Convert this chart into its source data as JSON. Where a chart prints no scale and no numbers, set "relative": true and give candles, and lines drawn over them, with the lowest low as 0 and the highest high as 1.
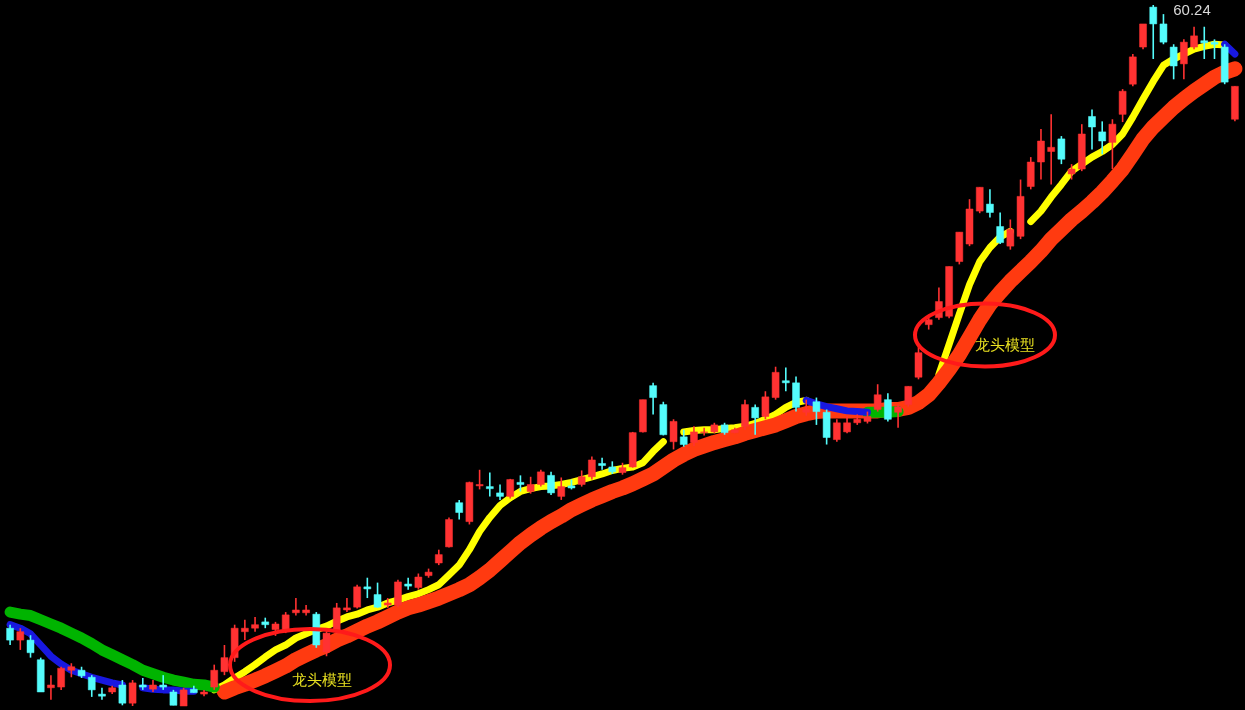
{
  "chart_data": {
    "type": "candlestick",
    "relative": true,
    "categories": [
      null,
      null,
      null,
      null,
      null,
      null,
      null,
      null,
      null,
      null,
      null,
      null,
      null,
      null,
      null,
      null,
      null,
      null,
      null,
      null,
      null,
      null,
      null,
      null,
      null,
      null,
      null,
      null,
      null,
      null,
      null,
      null,
      null,
      null,
      null,
      null,
      null,
      null,
      null,
      null,
      null,
      null,
      null,
      null,
      null,
      null,
      null,
      null,
      null,
      null,
      null,
      null,
      null,
      null,
      null,
      null,
      null,
      null,
      null,
      null,
      null,
      null,
      null,
      null,
      null,
      null,
      null,
      null,
      null,
      null,
      null,
      null,
      null,
      null,
      null,
      null,
      null,
      null,
      null,
      null,
      null,
      null,
      null,
      null,
      null,
      null,
      null,
      null,
      null,
      null,
      null,
      null,
      null,
      null,
      null,
      null,
      null,
      null,
      null,
      null,
      null,
      null,
      null,
      null,
      null,
      null,
      null,
      null,
      null,
      null,
      null,
      null,
      null,
      null,
      null,
      null,
      null,
      null,
      null,
      null,
      null
    ],
    "ohlc": [
      [
        0.111,
        0.116,
        0.087,
        0.094
      ],
      [
        0.094,
        0.111,
        0.08,
        0.106
      ],
      [
        0.094,
        0.101,
        0.069,
        0.076
      ],
      [
        0.066,
        0.069,
        0.02,
        0.02
      ],
      [
        0.026,
        0.044,
        0.009,
        0.03
      ],
      [
        0.027,
        0.056,
        0.023,
        0.054
      ],
      [
        0.051,
        0.061,
        0.041,
        0.056
      ],
      [
        0.051,
        0.056,
        0.04,
        0.043
      ],
      [
        0.041,
        0.044,
        0.013,
        0.023
      ],
      [
        0.017,
        0.026,
        0.009,
        0.014
      ],
      [
        0.02,
        0.029,
        0.017,
        0.026
      ],
      [
        0.03,
        0.037,
        0.001,
        0.004
      ],
      [
        0.004,
        0.037,
        0.0,
        0.033
      ],
      [
        0.03,
        0.04,
        0.023,
        0.027
      ],
      [
        0.024,
        0.037,
        0.02,
        0.03
      ],
      [
        0.03,
        0.044,
        0.023,
        0.027
      ],
      [
        0.02,
        0.023,
        0.001,
        0.001
      ],
      [
        0.0,
        0.026,
        0.0,
        0.023
      ],
      [
        0.024,
        0.029,
        0.019,
        0.019
      ],
      [
        0.017,
        0.023,
        0.014,
        0.02
      ],
      [
        0.027,
        0.059,
        0.023,
        0.051
      ],
      [
        0.049,
        0.087,
        0.044,
        0.069
      ],
      [
        0.069,
        0.116,
        0.063,
        0.111
      ],
      [
        0.106,
        0.123,
        0.094,
        0.111
      ],
      [
        0.111,
        0.127,
        0.106,
        0.116
      ],
      [
        0.12,
        0.126,
        0.111,
        0.116
      ],
      [
        0.109,
        0.12,
        0.1,
        0.117
      ],
      [
        0.109,
        0.134,
        0.104,
        0.13
      ],
      [
        0.133,
        0.154,
        0.129,
        0.137
      ],
      [
        0.133,
        0.144,
        0.129,
        0.137
      ],
      [
        0.131,
        0.134,
        0.083,
        0.087
      ],
      [
        0.077,
        0.111,
        0.071,
        0.104
      ],
      [
        0.106,
        0.147,
        0.103,
        0.14
      ],
      [
        0.137,
        0.154,
        0.134,
        0.14
      ],
      [
        0.141,
        0.173,
        0.139,
        0.17
      ],
      [
        0.17,
        0.183,
        0.154,
        0.167
      ],
      [
        0.159,
        0.176,
        0.14,
        0.141
      ],
      [
        0.144,
        0.154,
        0.14,
        0.147
      ],
      [
        0.144,
        0.18,
        0.141,
        0.177
      ],
      [
        0.174,
        0.183,
        0.166,
        0.171
      ],
      [
        0.169,
        0.189,
        0.166,
        0.184
      ],
      [
        0.186,
        0.196,
        0.183,
        0.191
      ],
      [
        0.204,
        0.223,
        0.201,
        0.216
      ],
      [
        0.227,
        0.269,
        0.226,
        0.266
      ],
      [
        0.29,
        0.294,
        0.266,
        0.276
      ],
      [
        0.263,
        0.32,
        0.259,
        0.319
      ],
      [
        0.314,
        0.337,
        0.309,
        0.316
      ],
      [
        0.313,
        0.333,
        0.299,
        0.31
      ],
      [
        0.304,
        0.316,
        0.294,
        0.299
      ],
      [
        0.299,
        0.324,
        0.296,
        0.323
      ],
      [
        0.319,
        0.329,
        0.306,
        0.316
      ],
      [
        0.306,
        0.327,
        0.303,
        0.316
      ],
      [
        0.316,
        0.337,
        0.313,
        0.334
      ],
      [
        0.329,
        0.334,
        0.301,
        0.304
      ],
      [
        0.299,
        0.326,
        0.294,
        0.313
      ],
      [
        0.314,
        0.323,
        0.309,
        0.311
      ],
      [
        0.316,
        0.336,
        0.313,
        0.327
      ],
      [
        0.327,
        0.356,
        0.323,
        0.351
      ],
      [
        0.346,
        0.354,
        0.337,
        0.343
      ],
      [
        0.341,
        0.349,
        0.331,
        0.334
      ],
      [
        0.333,
        0.347,
        0.33,
        0.34
      ],
      [
        0.341,
        0.391,
        0.34,
        0.39
      ],
      [
        0.391,
        0.437,
        0.39,
        0.437
      ],
      [
        0.457,
        0.461,
        0.416,
        0.44
      ],
      [
        0.43,
        0.434,
        0.386,
        0.387
      ],
      [
        0.377,
        0.409,
        0.366,
        0.406
      ],
      [
        0.384,
        0.394,
        0.37,
        0.373
      ],
      [
        0.376,
        0.399,
        0.371,
        0.391
      ],
      [
        0.39,
        0.397,
        0.386,
        0.391
      ],
      [
        0.391,
        0.404,
        0.389,
        0.401
      ],
      [
        0.401,
        0.404,
        0.387,
        0.39
      ],
      [
        0.39,
        0.397,
        0.389,
        0.394
      ],
      [
        0.399,
        0.437,
        0.394,
        0.43
      ],
      [
        0.426,
        0.43,
        0.387,
        0.411
      ],
      [
        0.413,
        0.449,
        0.409,
        0.441
      ],
      [
        0.44,
        0.484,
        0.437,
        0.476
      ],
      [
        0.464,
        0.483,
        0.449,
        0.461
      ],
      [
        0.461,
        0.47,
        0.42,
        0.426
      ],
      [
        0.419,
        0.437,
        0.414,
        0.423
      ],
      [
        0.434,
        0.44,
        0.401,
        0.42
      ],
      [
        0.419,
        0.423,
        0.373,
        0.383
      ],
      [
        0.38,
        0.409,
        0.377,
        0.404
      ],
      [
        0.391,
        0.414,
        0.389,
        0.404
      ],
      [
        0.404,
        0.416,
        0.401,
        0.409
      ],
      [
        0.406,
        0.42,
        0.403,
        0.413
      ],
      [
        0.423,
        0.459,
        0.42,
        0.444
      ],
      [
        0.437,
        0.446,
        0.406,
        0.409
      ],
      [
        0.419,
        0.43,
        0.397,
        0.427
      ],
      [
        0.43,
        0.456,
        0.427,
        0.456
      ],
      [
        0.469,
        0.516,
        0.466,
        0.504
      ],
      [
        0.544,
        0.554,
        0.537,
        0.551
      ],
      [
        0.554,
        0.597,
        0.551,
        0.577
      ],
      [
        0.556,
        0.627,
        0.553,
        0.627
      ],
      [
        0.634,
        0.676,
        0.63,
        0.676
      ],
      [
        0.659,
        0.723,
        0.656,
        0.709
      ],
      [
        0.706,
        0.74,
        0.703,
        0.74
      ],
      [
        0.716,
        0.737,
        0.697,
        0.704
      ],
      [
        0.684,
        0.704,
        0.659,
        0.661
      ],
      [
        0.656,
        0.694,
        0.651,
        0.68
      ],
      [
        0.67,
        0.751,
        0.666,
        0.727
      ],
      [
        0.741,
        0.783,
        0.737,
        0.776
      ],
      [
        0.776,
        0.823,
        0.751,
        0.806
      ],
      [
        0.791,
        0.844,
        0.744,
        0.797
      ],
      [
        0.809,
        0.813,
        0.773,
        0.78
      ],
      [
        0.759,
        0.773,
        0.751,
        0.766
      ],
      [
        0.766,
        0.83,
        0.763,
        0.816
      ],
      [
        0.841,
        0.851,
        0.794,
        0.826
      ],
      [
        0.819,
        0.834,
        0.787,
        0.806
      ],
      [
        0.804,
        0.837,
        0.766,
        0.83
      ],
      [
        0.844,
        0.88,
        0.833,
        0.877
      ],
      [
        0.887,
        0.93,
        0.884,
        0.926
      ],
      [
        0.94,
        0.973,
        0.937,
        0.973
      ],
      [
        0.997,
        1.0,
        0.923,
        0.973
      ],
      [
        0.973,
        0.987,
        0.944,
        0.947
      ],
      [
        0.94,
        0.944,
        0.894,
        0.913
      ],
      [
        0.916,
        0.951,
        0.894,
        0.947
      ],
      [
        0.94,
        0.969,
        0.937,
        0.956
      ],
      [
        0.949,
        0.969,
        0.923,
        0.946
      ],
      [
        0.947,
        0.951,
        0.923,
        0.944
      ],
      [
        0.94,
        0.944,
        0.887,
        0.89
      ],
      [
        0.837,
        0.884,
        0.834,
        0.884
      ]
    ],
    "colors": [
      "#54fcfc",
      "#ff3232",
      "#54fcfc",
      "#54fcfc",
      "#ff3232",
      "#ff3232",
      "#ff3232",
      "#54fcfc",
      "#54fcfc",
      "#54fcfc",
      "#ff3232",
      "#54fcfc",
      "#ff3232",
      "#54fcfc",
      "#ff3232",
      "#54fcfc",
      "#54fcfc",
      "#ff3232",
      "#54fcfc",
      "#ff3232",
      "#ff3232",
      "#ff3232",
      "#ff3232",
      "#ff3232",
      "#ff3232",
      "#54fcfc",
      "#ff3232",
      "#ff3232",
      "#ff3232",
      "#ff3232",
      "#54fcfc",
      "#ff3232",
      "#ff3232",
      "#ff3232",
      "#ff3232",
      "#54fcfc",
      "#54fcfc",
      "#ff3232",
      "#ff3232",
      "#54fcfc",
      "#ff3232",
      "#ff3232",
      "#ff3232",
      "#ff3232",
      "#54fcfc",
      "#ff3232",
      "#ff3232",
      "#54fcfc",
      "#54fcfc",
      "#ff3232",
      "#54fcfc",
      "#ff3232",
      "#ff3232",
      "#54fcfc",
      "#ff3232",
      "#54fcfc",
      "#ff3232",
      "#ff3232",
      "#54fcfc",
      "#54fcfc",
      "#ff3232",
      "#ff3232",
      "#ff3232",
      "#54fcfc",
      "#54fcfc",
      "#ff3232",
      "#54fcfc",
      "#ff3232",
      "#ff3232",
      "#ff3232",
      "#54fcfc",
      "#ff3232",
      "#ff3232",
      "#54fcfc",
      "#ff3232",
      "#ff3232",
      "#54fcfc",
      "#54fcfc",
      "#ff3232",
      "#54fcfc",
      "#54fcfc",
      "#ff3232",
      "#ff3232",
      "#ff3232",
      "#ff3232",
      "#ff3232",
      "#54fcfc",
      "#ff3232",
      "#ff3232",
      "#ff3232",
      "#ff3232",
      "#ff3232",
      "#ff3232",
      "#ff3232",
      "#ff3232",
      "#ff3232",
      "#54fcfc",
      "#54fcfc",
      "#ff3232",
      "#ff3232",
      "#ff3232",
      "#ff3232",
      "#ff3232",
      "#54fcfc",
      "#ff3232",
      "#ff3232",
      "#54fcfc",
      "#54fcfc",
      "#ff3232",
      "#ff3232",
      "#ff3232",
      "#ff3232",
      "#54fcfc",
      "#54fcfc",
      "#54fcfc",
      "#ff3232",
      "#ff3232",
      "#54fcfc",
      "#54fcfc",
      "#54fcfc",
      "#ff3232"
    ],
    "series": [
      {
        "type": "line",
        "color": "#ffff00",
        "values": [
          null,
          null,
          null,
          null,
          null,
          null,
          null,
          null,
          null,
          null,
          null,
          null,
          null,
          null,
          null,
          null,
          null,
          null,
          null,
          null,
          0.023,
          0.03,
          0.04,
          0.049,
          0.059,
          0.07,
          0.08,
          0.087,
          0.097,
          0.103,
          0.109,
          0.114,
          0.121,
          0.127,
          0.131,
          0.137,
          0.141,
          0.147,
          0.151,
          0.156,
          0.16,
          0.166,
          0.173,
          0.187,
          0.201,
          0.223,
          0.249,
          0.269,
          0.286,
          0.297,
          0.306,
          0.31,
          0.313,
          0.314,
          0.316,
          0.319,
          0.323,
          0.327,
          0.331,
          0.336,
          0.339,
          0.341,
          0.347,
          0.363,
          0.377,
          null,
          0.391,
          0.393,
          0.394,
          0.394,
          0.396,
          0.397,
          0.399,
          0.403,
          0.409,
          0.416,
          0.426,
          0.433,
          0.436,
          null,
          null,
          null,
          null,
          null,
          null,
          null,
          null,
          null,
          null,
          null,
          null,
          0.473,
          0.516,
          0.559,
          0.601,
          0.634,
          0.654,
          0.669,
          0.677,
          null,
          0.691,
          0.706,
          0.726,
          0.744,
          0.763,
          0.773,
          0.783,
          0.791,
          0.801,
          0.816,
          0.84,
          0.866,
          0.891,
          0.914,
          0.923,
          0.93,
          0.937,
          0.941,
          0.944,
          0.943,
          null
        ]
      },
      {
        "type": "line",
        "color": "#ff3a10",
        "values": [
          null,
          null,
          null,
          null,
          null,
          null,
          null,
          null,
          null,
          null,
          null,
          null,
          null,
          null,
          null,
          null,
          null,
          null,
          null,
          null,
          null,
          0.02,
          0.026,
          0.031,
          0.037,
          0.043,
          0.05,
          0.057,
          0.066,
          0.073,
          0.08,
          0.086,
          0.094,
          0.1,
          0.107,
          0.114,
          0.12,
          0.127,
          0.134,
          0.14,
          0.144,
          0.149,
          0.154,
          0.16,
          0.166,
          0.173,
          0.183,
          0.194,
          0.207,
          0.22,
          0.233,
          0.244,
          0.254,
          0.263,
          0.271,
          0.28,
          0.287,
          0.294,
          0.3,
          0.306,
          0.311,
          0.317,
          0.324,
          0.331,
          0.341,
          0.351,
          0.359,
          0.366,
          0.371,
          0.376,
          0.38,
          0.384,
          0.389,
          0.393,
          0.397,
          0.401,
          0.407,
          0.413,
          0.417,
          0.42,
          0.421,
          0.421,
          0.421,
          0.421,
          0.421,
          0.421,
          0.423,
          0.423,
          0.426,
          0.433,
          0.444,
          0.461,
          0.48,
          0.501,
          0.526,
          0.551,
          0.573,
          0.59,
          0.606,
          0.62,
          0.634,
          0.649,
          0.666,
          0.68,
          0.694,
          0.706,
          0.719,
          0.733,
          0.749,
          0.766,
          0.787,
          0.809,
          0.826,
          0.84,
          0.854,
          0.866,
          0.877,
          0.887,
          0.897,
          0.904,
          0.909
        ]
      },
      {
        "type": "line",
        "color": "#00b400",
        "values": [
          0.134,
          0.131,
          0.129,
          0.123,
          0.117,
          0.111,
          0.104,
          0.097,
          0.089,
          0.08,
          0.073,
          0.066,
          0.059,
          0.051,
          0.046,
          0.041,
          0.037,
          0.034,
          0.031,
          0.03,
          0.027,
          null,
          null,
          null,
          null,
          null,
          null,
          null,
          null,
          null,
          null,
          null,
          null,
          null,
          null,
          null,
          null,
          null,
          null,
          null,
          null,
          null,
          null,
          null,
          null,
          null,
          null,
          null,
          null,
          null,
          null,
          null,
          null,
          null,
          null,
          null,
          null,
          null,
          null,
          null,
          null,
          null,
          null,
          null,
          null,
          null,
          null,
          null,
          null,
          null,
          null,
          null,
          null,
          null,
          null,
          null,
          null,
          null,
          null,
          null,
          null,
          null,
          null,
          null,
          0.419,
          0.419,
          0.419,
          0.42,
          null,
          null,
          null,
          null,
          null,
          null,
          null,
          null,
          null,
          null,
          null,
          null,
          null,
          null,
          null,
          null,
          null,
          null,
          null,
          null,
          null,
          null,
          null,
          null,
          null,
          null,
          null,
          null,
          null,
          null,
          null,
          null,
          null
        ]
      },
      {
        "type": "line",
        "color": "#1818e0",
        "values": [
          0.116,
          0.111,
          0.103,
          0.087,
          0.071,
          0.06,
          0.051,
          0.046,
          0.041,
          0.037,
          0.033,
          0.03,
          null,
          0.026,
          0.024,
          0.023,
          0.023,
          0.021,
          0.021,
          null,
          null,
          null,
          null,
          null,
          null,
          null,
          null,
          null,
          null,
          null,
          null,
          null,
          null,
          null,
          null,
          null,
          null,
          null,
          null,
          null,
          null,
          null,
          null,
          null,
          null,
          null,
          null,
          null,
          null,
          null,
          null,
          null,
          null,
          null,
          null,
          null,
          null,
          null,
          null,
          null,
          null,
          null,
          null,
          null,
          null,
          null,
          null,
          null,
          null,
          null,
          null,
          null,
          null,
          null,
          null,
          null,
          null,
          null,
          0.436,
          0.431,
          0.427,
          0.424,
          0.421,
          0.42,
          0.419,
          null,
          null,
          null,
          null,
          null,
          null,
          null,
          null,
          null,
          null,
          null,
          null,
          null,
          null,
          null,
          null,
          null,
          null,
          null,
          null,
          null,
          null,
          null,
          null,
          null,
          null,
          null,
          null,
          null,
          null,
          null,
          null,
          null,
          null,
          0.944,
          0.93
        ]
      }
    ],
    "annotations": [
      "龙头模型",
      "龙头模型",
      "60.24"
    ]
  }
}
